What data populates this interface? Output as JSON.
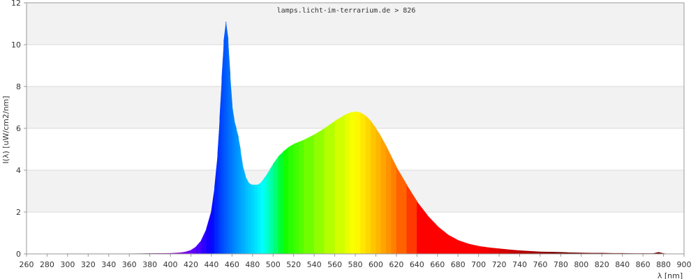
{
  "chart_data": {
    "type": "area",
    "title": "lamps.licht-im-terrarium.de > 826",
    "xlabel": "λ [nm]",
    "ylabel": "I(λ)  [uW/cm2/nm]",
    "xlim": [
      260,
      900
    ],
    "ylim": [
      0,
      12
    ],
    "x_ticks": [
      260,
      280,
      300,
      320,
      340,
      360,
      380,
      400,
      420,
      440,
      460,
      480,
      500,
      520,
      540,
      560,
      580,
      600,
      620,
      640,
      660,
      680,
      700,
      720,
      740,
      760,
      780,
      800,
      820,
      840,
      860,
      880,
      900
    ],
    "y_ticks": [
      0,
      2,
      4,
      6,
      8,
      10,
      12
    ],
    "grid": "horizontal, alternating bands",
    "fill": "spectral color per wavelength",
    "series": [
      {
        "x": [
          275,
          300,
          320,
          340,
          360,
          380,
          400,
          410,
          415,
          420,
          425,
          430,
          435,
          440,
          443,
          446,
          448,
          450,
          452,
          454,
          456,
          458,
          460,
          462,
          464,
          466,
          468,
          470,
          473,
          476,
          479,
          482,
          485,
          488,
          491,
          494,
          497,
          500,
          505,
          510,
          515,
          520,
          525,
          530,
          540,
          550,
          560,
          570,
          575,
          580,
          585,
          590,
          595,
          600,
          605,
          610,
          615,
          620,
          630,
          640,
          650,
          660,
          670,
          680,
          690,
          700,
          710,
          720,
          730,
          740,
          750,
          760,
          770,
          780,
          790,
          800,
          810,
          820,
          830,
          840,
          850,
          860,
          870,
          875,
          880,
          885
        ],
        "values": [
          0.0,
          0.01,
          0.01,
          0.01,
          0.01,
          0.02,
          0.03,
          0.06,
          0.1,
          0.18,
          0.35,
          0.65,
          1.2,
          2.1,
          3.2,
          4.8,
          6.5,
          8.4,
          10.2,
          11.1,
          10.3,
          8.6,
          7.1,
          6.4,
          6.0,
          5.6,
          5.0,
          4.3,
          3.7,
          3.4,
          3.3,
          3.3,
          3.3,
          3.4,
          3.6,
          3.8,
          4.05,
          4.3,
          4.65,
          4.9,
          5.1,
          5.25,
          5.35,
          5.45,
          5.7,
          6.0,
          6.35,
          6.65,
          6.75,
          6.8,
          6.75,
          6.6,
          6.35,
          6.0,
          5.6,
          5.15,
          4.65,
          4.15,
          3.3,
          2.5,
          1.85,
          1.32,
          0.92,
          0.65,
          0.48,
          0.37,
          0.3,
          0.25,
          0.2,
          0.16,
          0.13,
          0.1,
          0.09,
          0.08,
          0.06,
          0.05,
          0.04,
          0.04,
          0.03,
          0.03,
          0.02,
          0.02,
          0.02,
          0.08,
          0.02,
          0.0
        ]
      }
    ]
  },
  "colors": {
    "grid_band": "#f2f2f2",
    "grid_line": "#d9d9d9",
    "axis": "#999999",
    "text": "#333333"
  }
}
